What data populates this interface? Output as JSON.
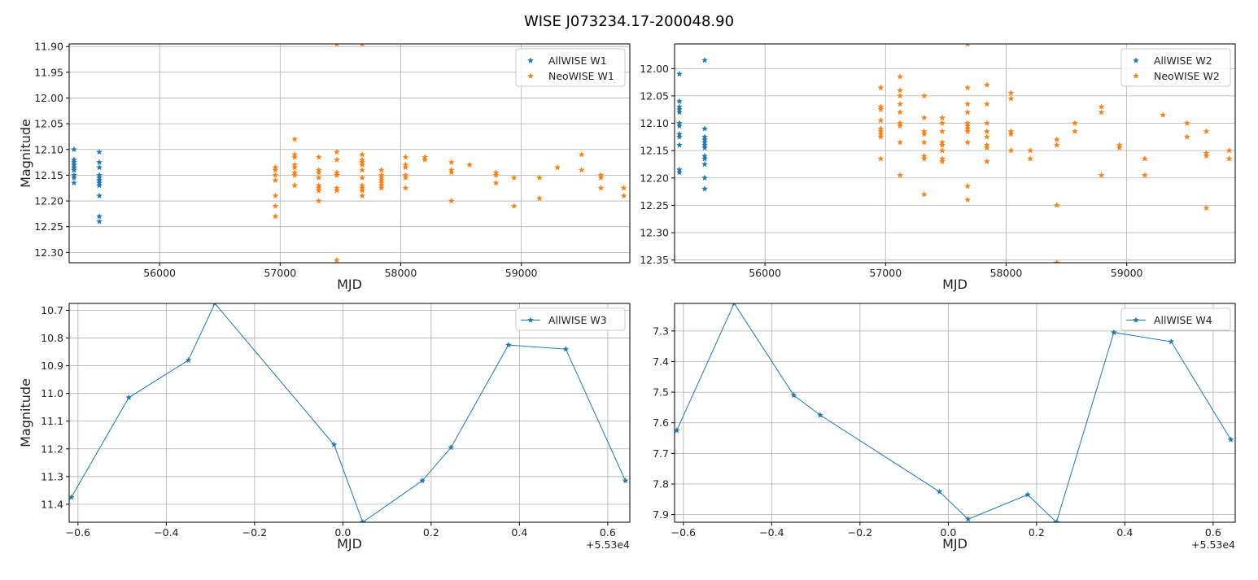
{
  "figure": {
    "suptitle": "WISE J073234.17-200048.90"
  },
  "colors": {
    "allwise": "#1f77b4",
    "neowise": "#ff7f0e",
    "grid": "#b0b0b0"
  },
  "chart_data": [
    {
      "type": "scatter",
      "xlabel": "MJD",
      "ylabel": "Magnitude",
      "xlim": [
        55250,
        59900
      ],
      "ylim": [
        12.32,
        11.895
      ],
      "y_inverted": true,
      "xticks": [
        56000,
        57000,
        58000,
        59000
      ],
      "yticks": [
        11.9,
        11.95,
        12.0,
        12.05,
        12.1,
        12.15,
        12.2,
        12.25,
        12.3
      ],
      "ytick_decimals": 2,
      "offset_text": "",
      "grid": true,
      "legend_position": "upper right",
      "series": [
        {
          "name": "AllWISE W1",
          "color": "#1f77b4",
          "marker": "star",
          "line": false,
          "x": [
            55290,
            55290,
            55290,
            55290,
            55290,
            55290,
            55290,
            55290,
            55290,
            55290,
            55290,
            55290,
            55500,
            55500,
            55500,
            55500,
            55500,
            55500,
            55500,
            55500,
            55500,
            55500,
            55500,
            55500
          ],
          "y": [
            12.1,
            12.12,
            12.125,
            12.13,
            12.135,
            12.14,
            12.14,
            12.15,
            12.155,
            12.165,
            12.13,
            12.135,
            12.105,
            12.125,
            12.135,
            12.15,
            12.155,
            12.16,
            12.165,
            12.17,
            12.19,
            12.23,
            12.24,
            12.16
          ]
        },
        {
          "name": "NeoWISE W1",
          "color": "#ff7f0e",
          "marker": "star",
          "line": false,
          "x": [
            56960,
            56960,
            56960,
            56960,
            56960,
            56960,
            56960,
            57120,
            57120,
            57120,
            57120,
            57120,
            57120,
            57120,
            57120,
            57320,
            57320,
            57320,
            57320,
            57320,
            57320,
            57320,
            57320,
            57470,
            57470,
            57470,
            57470,
            57470,
            57470,
            57470,
            57470,
            57470,
            57680,
            57680,
            57680,
            57680,
            57680,
            57680,
            57680,
            57680,
            57680,
            57680,
            57680,
            57840,
            57840,
            57840,
            57840,
            57840,
            57840,
            57840,
            58040,
            58040,
            58040,
            58040,
            58040,
            58040,
            58200,
            58200,
            58420,
            58420,
            58420,
            58420,
            58570,
            58790,
            58790,
            58790,
            58940,
            58940,
            59150,
            59150,
            59300,
            59500,
            59500,
            59660,
            59660,
            59660,
            59850,
            59850
          ],
          "y": [
            12.135,
            12.14,
            12.15,
            12.16,
            12.19,
            12.21,
            12.23,
            12.08,
            12.11,
            12.115,
            12.13,
            12.135,
            12.145,
            12.15,
            12.17,
            12.115,
            12.14,
            12.145,
            12.155,
            12.17,
            12.175,
            12.18,
            12.2,
            12.105,
            12.12,
            12.145,
            12.15,
            12.175,
            12.18,
            11.895,
            12.315,
            12.15,
            11.895,
            12.11,
            12.12,
            12.125,
            12.13,
            12.14,
            12.155,
            12.17,
            12.175,
            12.18,
            12.19,
            12.14,
            12.15,
            12.155,
            12.16,
            12.165,
            12.17,
            12.175,
            12.115,
            12.13,
            12.135,
            12.15,
            12.155,
            12.175,
            12.115,
            12.12,
            12.125,
            12.14,
            12.145,
            12.2,
            12.13,
            12.145,
            12.15,
            12.165,
            12.155,
            12.21,
            12.155,
            12.195,
            12.135,
            12.11,
            12.14,
            12.15,
            12.155,
            12.175,
            12.175,
            12.19
          ]
        }
      ]
    },
    {
      "type": "scatter",
      "xlabel": "MJD",
      "ylabel": "",
      "xlim": [
        55250,
        59900
      ],
      "ylim": [
        12.355,
        11.955
      ],
      "y_inverted": true,
      "xticks": [
        56000,
        57000,
        58000,
        59000
      ],
      "yticks": [
        12.0,
        12.05,
        12.1,
        12.15,
        12.2,
        12.25,
        12.3,
        12.35
      ],
      "ytick_decimals": 2,
      "offset_text": "",
      "grid": true,
      "legend_position": "upper right",
      "series": [
        {
          "name": "AllWISE W2",
          "color": "#1f77b4",
          "marker": "star",
          "line": false,
          "x": [
            55290,
            55290,
            55290,
            55290,
            55290,
            55290,
            55290,
            55290,
            55290,
            55290,
            55290,
            55290,
            55500,
            55500,
            55500,
            55500,
            55500,
            55500,
            55500,
            55500,
            55500,
            55500,
            55500,
            55500
          ],
          "y": [
            12.01,
            12.06,
            12.07,
            12.075,
            12.08,
            12.1,
            12.105,
            12.12,
            12.125,
            12.14,
            12.185,
            12.19,
            11.985,
            12.11,
            12.125,
            12.13,
            12.135,
            12.14,
            12.145,
            12.16,
            12.165,
            12.175,
            12.2,
            12.22
          ]
        },
        {
          "name": "NeoWISE W2",
          "color": "#ff7f0e",
          "marker": "star",
          "line": false,
          "x": [
            56960,
            56960,
            56960,
            56960,
            56960,
            56960,
            56960,
            56960,
            56960,
            57120,
            57120,
            57120,
            57120,
            57120,
            57120,
            57120,
            57120,
            57120,
            57320,
            57320,
            57320,
            57320,
            57320,
            57320,
            57320,
            57320,
            57470,
            57470,
            57470,
            57470,
            57470,
            57470,
            57470,
            57470,
            57680,
            57680,
            57680,
            57680,
            57680,
            57680,
            57680,
            57680,
            57680,
            57680,
            57680,
            57840,
            57840,
            57840,
            57840,
            57840,
            57840,
            57840,
            57840,
            58040,
            58040,
            58040,
            58040,
            58040,
            58200,
            58200,
            58420,
            58420,
            58420,
            58420,
            58570,
            58570,
            58790,
            58790,
            58790,
            58940,
            58940,
            59150,
            59150,
            59300,
            59500,
            59500,
            59660,
            59660,
            59660,
            59660,
            59850,
            59850
          ],
          "y": [
            12.035,
            12.07,
            12.075,
            12.095,
            12.11,
            12.115,
            12.12,
            12.125,
            12.165,
            12.015,
            12.04,
            12.05,
            12.065,
            12.08,
            12.1,
            12.105,
            12.135,
            12.195,
            12.05,
            12.09,
            12.115,
            12.12,
            12.135,
            12.16,
            12.165,
            12.23,
            12.09,
            12.1,
            12.115,
            12.135,
            12.14,
            12.15,
            12.165,
            12.17,
            11.955,
            12.035,
            12.065,
            12.08,
            12.1,
            12.105,
            12.11,
            12.115,
            12.135,
            12.215,
            12.24,
            12.03,
            12.065,
            12.1,
            12.115,
            12.125,
            12.14,
            12.145,
            12.17,
            12.045,
            12.055,
            12.115,
            12.12,
            12.15,
            12.15,
            12.165,
            12.13,
            12.14,
            12.25,
            12.355,
            12.1,
            12.115,
            12.07,
            12.08,
            12.195,
            12.14,
            12.145,
            12.165,
            12.195,
            12.085,
            12.1,
            12.125,
            12.115,
            12.155,
            12.16,
            12.255,
            12.15,
            12.165
          ]
        }
      ]
    },
    {
      "type": "line",
      "xlabel": "MJD",
      "ylabel": "Magnitude",
      "xlim": [
        -0.62,
        0.65
      ],
      "ylim": [
        11.465,
        10.675
      ],
      "y_inverted": true,
      "xticks": [
        -0.6,
        -0.4,
        -0.2,
        0.0,
        0.2,
        0.4,
        0.6
      ],
      "yticks": [
        10.7,
        10.8,
        10.9,
        11.0,
        11.1,
        11.2,
        11.3,
        11.4
      ],
      "ytick_decimals": 1,
      "offset_text": "+5.53e4",
      "grid": true,
      "legend_position": "upper right",
      "series": [
        {
          "name": "AllWISE W3",
          "color": "#1f77b4",
          "marker": "star",
          "line": true,
          "x": [
            -0.615,
            -0.485,
            -0.35,
            -0.29,
            -0.02,
            0.045,
            0.18,
            0.245,
            0.375,
            0.505,
            0.64
          ],
          "y": [
            11.375,
            11.015,
            10.88,
            10.675,
            11.185,
            11.465,
            11.315,
            11.195,
            10.825,
            10.84,
            11.315
          ]
        }
      ]
    },
    {
      "type": "line",
      "xlabel": "MJD",
      "ylabel": "",
      "xlim": [
        -0.62,
        0.65
      ],
      "ylim": [
        7.925,
        7.21
      ],
      "y_inverted": true,
      "xticks": [
        -0.6,
        -0.4,
        -0.2,
        0.0,
        0.2,
        0.4,
        0.6
      ],
      "yticks": [
        7.3,
        7.4,
        7.5,
        7.6,
        7.7,
        7.8,
        7.9
      ],
      "ytick_decimals": 1,
      "offset_text": "+5.53e4",
      "grid": true,
      "legend_position": "upper right",
      "series": [
        {
          "name": "AllWISE W4",
          "color": "#1f77b4",
          "marker": "star",
          "line": true,
          "x": [
            -0.615,
            -0.485,
            -0.35,
            -0.29,
            -0.02,
            0.045,
            0.18,
            0.245,
            0.375,
            0.505,
            0.64
          ],
          "y": [
            7.625,
            7.21,
            7.51,
            7.575,
            7.825,
            7.915,
            7.835,
            7.925,
            7.305,
            7.335,
            7.655
          ]
        }
      ]
    }
  ]
}
